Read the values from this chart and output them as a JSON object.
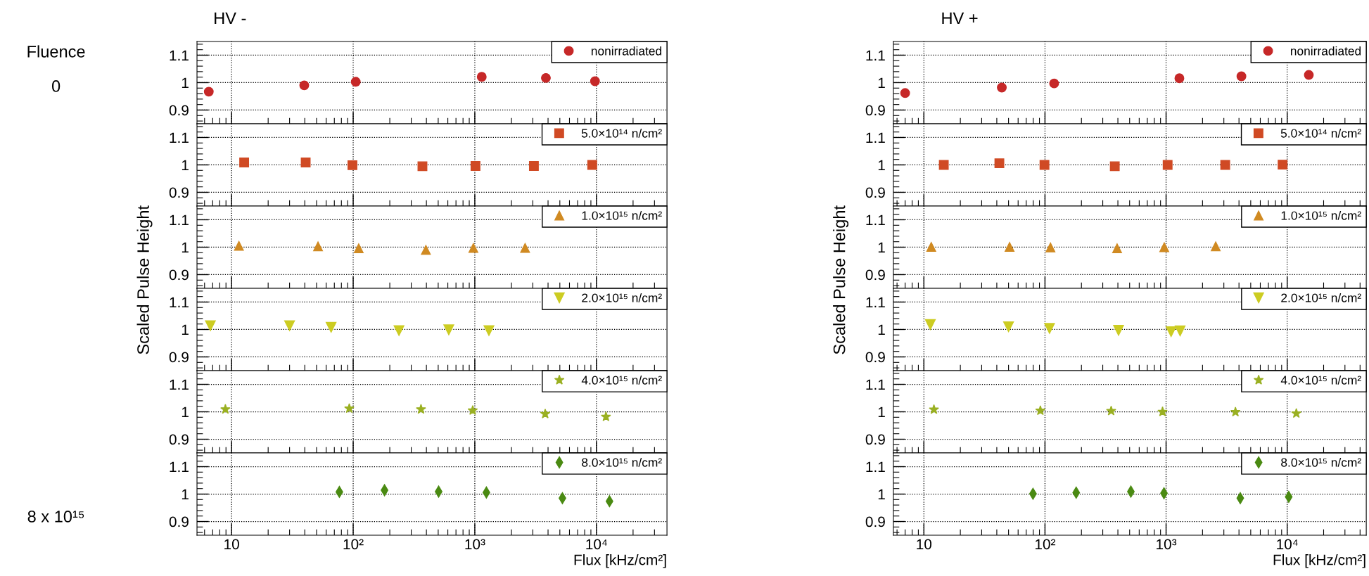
{
  "chart_data": [
    {
      "type": "scatter",
      "title": "HV -",
      "annotations": [
        "Fluence",
        "0"
      ],
      "tick_labels": "y",
      "log": "x",
      "grid": true,
      "legend": "top right",
      "marker": "circle",
      "xlim": [
        5.2,
        38000
      ],
      "ylim": [
        0.85,
        1.15
      ],
      "yticks": [
        0.9,
        1,
        1.1
      ],
      "x": [
        6.5,
        39.6,
        105,
        1140,
        3840,
        9730
      ],
      "series": [
        {
          "name": "nonirradiated",
          "color": "#c62828",
          "values": [
            0.967,
            0.99,
            1.003,
            1.021,
            1.017,
            1.005
          ]
        }
      ]
    },
    {
      "type": "scatter",
      "tick_labels": "y",
      "log": "x",
      "grid": true,
      "legend": "top right",
      "marker": "square",
      "xlim": [
        5.2,
        38000
      ],
      "ylim": [
        0.85,
        1.15
      ],
      "yticks": [
        0.9,
        1,
        1.1
      ],
      "x": [
        12.7,
        40.7,
        98.6,
        371,
        1013,
        3060,
        9230
      ],
      "series": [
        {
          "name": "5.0×10¹⁴ n/cm²",
          "color": "#d04a24",
          "values": [
            1.009,
            1.009,
            0.999,
            0.995,
            0.996,
            0.996,
            1.0
          ]
        }
      ]
    },
    {
      "type": "scatter",
      "ylabel": "Scaled Pulse Height",
      "tick_labels": "y",
      "log": "x",
      "grid": true,
      "legend": "top right",
      "marker": "triangle",
      "xlim": [
        5.2,
        38000
      ],
      "ylim": [
        0.85,
        1.15
      ],
      "yticks": [
        0.9,
        1,
        1.1
      ],
      "x": [
        11.5,
        51.4,
        111,
        396,
        973,
        2590
      ],
      "series": [
        {
          "name": "1.0×10¹⁵ n/cm²",
          "color": "#d08a22",
          "values": [
            1.005,
            1.003,
            0.996,
            0.99,
            0.997,
            0.997
          ]
        }
      ]
    },
    {
      "type": "scatter",
      "tick_labels": "y",
      "log": "x",
      "grid": true,
      "legend": "top right",
      "marker": "triangle_down",
      "xlim": [
        5.2,
        38000
      ],
      "ylim": [
        0.85,
        1.15
      ],
      "yticks": [
        0.9,
        1,
        1.1
      ],
      "x": [
        6.7,
        30,
        65.8,
        238,
        611,
        1306
      ],
      "series": [
        {
          "name": "2.0×10¹⁵ n/cm²",
          "color": "#cccc22",
          "values": [
            1.014,
            1.014,
            1.008,
            0.996,
            0.999,
            0.996
          ]
        }
      ]
    },
    {
      "type": "scatter",
      "tick_labels": "y",
      "log": "x",
      "grid": true,
      "legend": "top right",
      "marker": "star",
      "xlim": [
        5.2,
        38000
      ],
      "ylim": [
        0.85,
        1.15
      ],
      "yticks": [
        0.9,
        1,
        1.1
      ],
      "x": [
        8.9,
        92.9,
        361,
        961,
        3790,
        11970
      ],
      "series": [
        {
          "name": "4.0×10¹⁵ n/cm²",
          "color": "#9ab022",
          "values": [
            1.009,
            1.012,
            1.009,
            1.005,
            0.992,
            0.982
          ]
        }
      ]
    },
    {
      "type": "scatter",
      "xlabel": "Flux [kHz/cm²]",
      "annotations": [
        "8 x 10¹⁵"
      ],
      "log": "x",
      "grid": true,
      "legend": "top right",
      "marker": "diamond",
      "xlim": [
        5.2,
        38000
      ],
      "ylim": [
        0.85,
        1.15
      ],
      "xticks": [
        {
          "value": 10,
          "label": "10"
        },
        {
          "value": 100,
          "label": "10²"
        },
        {
          "value": 1000,
          "label": "10³"
        },
        {
          "value": 10000,
          "label": "10⁴"
        }
      ],
      "yticks": [
        0.9,
        1,
        1.1
      ],
      "x": [
        77,
        181,
        504,
        1245,
        5250,
        12800
      ],
      "series": [
        {
          "name": "8.0×10¹⁵ n/cm²",
          "color": "#4a8a12",
          "values": [
            1.008,
            1.014,
            1.009,
            1.006,
            0.985,
            0.974
          ]
        }
      ]
    },
    {
      "type": "scatter",
      "title": "HV +",
      "tick_labels": "y",
      "log": "x",
      "grid": true,
      "legend": "top right",
      "marker": "circle",
      "xlim": [
        5.6,
        45000
      ],
      "ylim": [
        0.85,
        1.15
      ],
      "yticks": [
        0.9,
        1,
        1.1
      ],
      "x": [
        7.0,
        44,
        119,
        1288,
        4190,
        15100
      ],
      "series": [
        {
          "name": "nonirradiated",
          "color": "#c62828",
          "values": [
            0.962,
            0.982,
            0.997,
            1.016,
            1.023,
            1.028
          ]
        }
      ]
    },
    {
      "type": "scatter",
      "tick_labels": "y",
      "log": "x",
      "grid": true,
      "legend": "top right",
      "marker": "square",
      "xlim": [
        5.6,
        45000
      ],
      "ylim": [
        0.85,
        1.15
      ],
      "yticks": [
        0.9,
        1,
        1.1
      ],
      "x": [
        14.6,
        42,
        99,
        377,
        1030,
        3080,
        9170
      ],
      "series": [
        {
          "name": "5.0×10¹⁴ n/cm²",
          "color": "#d04a24",
          "values": [
            1.0,
            1.006,
            1.0,
            0.995,
            1.0,
            1.0,
            1.001
          ]
        }
      ]
    },
    {
      "type": "scatter",
      "ylabel": "Scaled Pulse Height",
      "tick_labels": "y",
      "log": "x",
      "grid": true,
      "legend": "top right",
      "marker": "triangle",
      "xlim": [
        5.6,
        45000
      ],
      "ylim": [
        0.85,
        1.15
      ],
      "yticks": [
        0.9,
        1,
        1.1
      ],
      "x": [
        11.5,
        51,
        111,
        394,
        966,
        2570
      ],
      "series": [
        {
          "name": "1.0×10¹⁵ n/cm²",
          "color": "#d08a22",
          "values": [
            1.001,
            1.001,
            0.999,
            0.996,
            1.0,
            1.003
          ]
        }
      ]
    },
    {
      "type": "scatter",
      "tick_labels": "y",
      "log": "x",
      "grid": true,
      "legend": "top right",
      "marker": "triangle_down",
      "xlim": [
        5.6,
        45000
      ],
      "ylim": [
        0.85,
        1.15
      ],
      "yticks": [
        0.9,
        1,
        1.1
      ],
      "x": [
        11.3,
        50,
        109,
        405,
        1100,
        1306
      ],
      "series": [
        {
          "name": "2.0×10¹⁵ n/cm²",
          "color": "#cccc22",
          "values": [
            1.018,
            1.01,
            1.004,
            0.997,
            0.992,
            0.995
          ]
        }
      ]
    },
    {
      "type": "scatter",
      "tick_labels": "y",
      "log": "x",
      "grid": true,
      "legend": "top right",
      "marker": "star",
      "xlim": [
        5.6,
        45000
      ],
      "ylim": [
        0.85,
        1.15
      ],
      "yticks": [
        0.9,
        1,
        1.1
      ],
      "x": [
        12.1,
        91.6,
        352,
        935,
        3740,
        11900
      ],
      "series": [
        {
          "name": "4.0×10¹⁵ n/cm²",
          "color": "#9ab022",
          "values": [
            1.008,
            1.004,
            1.003,
            1.0,
            0.999,
            0.994
          ]
        }
      ]
    },
    {
      "type": "scatter",
      "xlabel": "Flux [kHz/cm²]",
      "log": "x",
      "grid": true,
      "legend": "top right",
      "marker": "diamond",
      "xlim": [
        5.6,
        45000
      ],
      "ylim": [
        0.85,
        1.15
      ],
      "xticks": [
        {
          "value": 10,
          "label": "10"
        },
        {
          "value": 100,
          "label": "10²"
        },
        {
          "value": 1000,
          "label": "10³"
        },
        {
          "value": 10000,
          "label": "10⁴"
        }
      ],
      "yticks": [
        0.9,
        1,
        1.1
      ],
      "x": [
        79.6,
        181,
        512,
        961,
        4100,
        10300
      ],
      "series": [
        {
          "name": "8.0×10¹⁵ n/cm²",
          "color": "#4a8a12",
          "values": [
            1.001,
            1.005,
            1.009,
            1.003,
            0.985,
            0.99
          ]
        }
      ]
    }
  ]
}
